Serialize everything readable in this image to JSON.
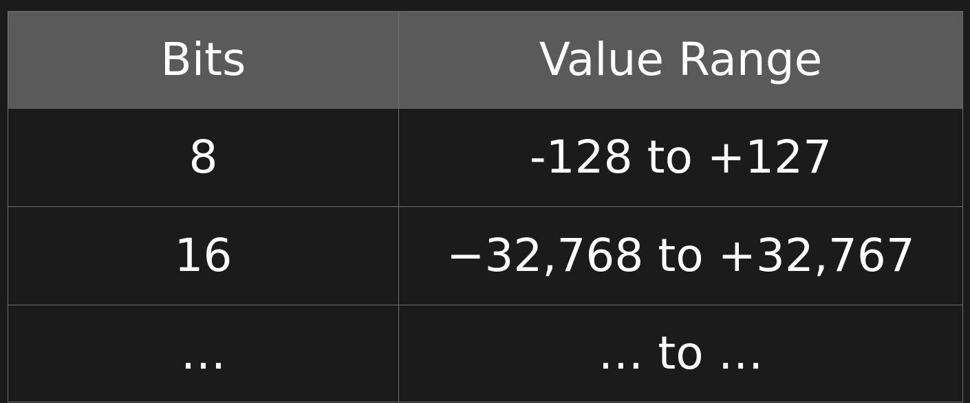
{
  "table": {
    "headers": [
      "Bits",
      "Value Range"
    ],
    "rows": [
      [
        "8",
        "-128 to +127"
      ],
      [
        "16",
        "−32,768 to +32,767"
      ],
      [
        "…",
        "… to …"
      ]
    ]
  },
  "colors": {
    "page_background": "#1b1b1b",
    "header_background": "#5a5a5a",
    "grid_lines": "#6f6f6f",
    "text": "#ffffff"
  }
}
